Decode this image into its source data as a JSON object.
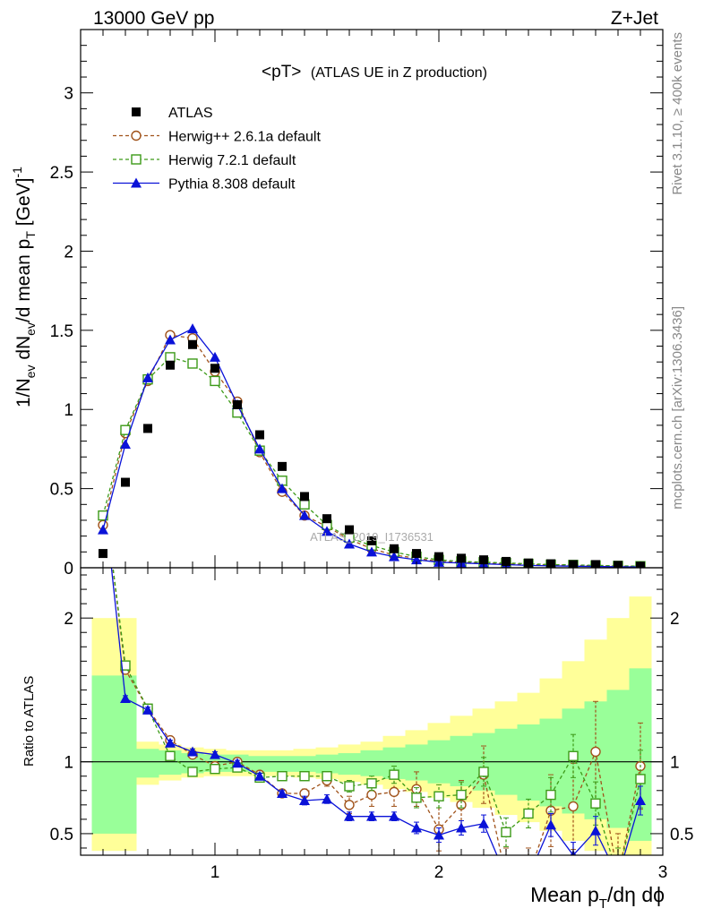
{
  "header": {
    "left": "13000 GeV pp",
    "right": "Z+Jet"
  },
  "side": {
    "rivet": "Rivet 3.1.10, ≥ 400k events",
    "mcplots": "mcplots.cern.ch [arXiv:1306.3436]"
  },
  "plot_title": {
    "main": "<pT>",
    "sub": "(ATLAS UE in Z production)"
  },
  "watermark": "ATLAS_2019_I1736531",
  "colors": {
    "atlas": "#000000",
    "herwigpp": "#a0521a",
    "herwig7": "#3c9a18",
    "pythia": "#0a12d8",
    "band_yellow": "#ffff99",
    "band_green": "#99ff99"
  },
  "chart_data": [
    {
      "type": "scatter",
      "panel": "main",
      "ylabel": "1/N_ev dN_ev/d mean p_T [GeV]^-1",
      "ylim": [
        0,
        3.4
      ],
      "yticks": [
        0,
        0.5,
        1,
        1.5,
        2,
        2.5,
        3
      ],
      "xlim": [
        0.4,
        3.0
      ],
      "x": [
        0.5,
        0.6,
        0.7,
        0.8,
        0.9,
        1.0,
        1.1,
        1.2,
        1.3,
        1.4,
        1.5,
        1.6,
        1.7,
        1.8,
        1.9,
        2.0,
        2.1,
        2.2,
        2.3,
        2.4,
        2.5,
        2.6,
        2.7,
        2.8,
        2.9
      ],
      "series": [
        {
          "name": "ATLAS",
          "key": "atlas",
          "marker": "square-filled",
          "values": [
            0.09,
            0.54,
            0.88,
            1.28,
            1.41,
            1.26,
            1.03,
            0.84,
            0.64,
            0.45,
            0.31,
            0.24,
            0.17,
            0.12,
            0.09,
            0.07,
            0.06,
            0.05,
            0.04,
            0.03,
            0.025,
            0.02,
            0.02,
            0.015,
            0.01
          ]
        },
        {
          "name": "Herwig++ 2.6.1a default",
          "key": "herwigpp",
          "marker": "circle-open",
          "dashed": true,
          "values": [
            0.27,
            0.85,
            1.18,
            1.47,
            1.45,
            1.24,
            1.05,
            0.73,
            0.48,
            0.33,
            0.26,
            0.18,
            0.12,
            0.08,
            0.06,
            0.04,
            0.035,
            0.03,
            0.025,
            0.02,
            0.018,
            0.015,
            0.012,
            0.01,
            0.008
          ]
        },
        {
          "name": "Herwig 7.2.1 default",
          "key": "herwig7",
          "marker": "square-open",
          "dashed": true,
          "values": [
            0.33,
            0.87,
            1.19,
            1.33,
            1.29,
            1.18,
            0.98,
            0.74,
            0.55,
            0.4,
            0.27,
            0.19,
            0.14,
            0.1,
            0.07,
            0.05,
            0.04,
            0.035,
            0.03,
            0.025,
            0.02,
            0.018,
            0.015,
            0.012,
            0.01
          ]
        },
        {
          "name": "Pythia 8.308 default",
          "key": "pythia",
          "marker": "triangle-filled",
          "values": [
            0.24,
            0.78,
            1.2,
            1.44,
            1.51,
            1.33,
            1.03,
            0.75,
            0.5,
            0.33,
            0.23,
            0.15,
            0.1,
            0.07,
            0.05,
            0.035,
            0.03,
            0.025,
            0.02,
            0.015,
            0.012,
            0.01,
            0.008,
            0.006,
            0.005
          ]
        }
      ]
    },
    {
      "type": "line",
      "panel": "ratio",
      "ylabel": "Ratio to ATLAS",
      "xlabel": "Mean p_T/dη dϕ",
      "ylim": [
        0.35,
        2.35
      ],
      "yticks": [
        0.5,
        1,
        2
      ],
      "xlim": [
        0.4,
        3.0
      ],
      "xticks": [
        1,
        2,
        3
      ],
      "reference": 1,
      "bin_edges": [
        0.45,
        0.55,
        0.65,
        0.75,
        0.85,
        0.95,
        1.05,
        1.15,
        1.25,
        1.35,
        1.45,
        1.55,
        1.65,
        1.75,
        1.85,
        1.95,
        2.05,
        2.15,
        2.25,
        2.35,
        2.45,
        2.55,
        2.65,
        2.75,
        2.85,
        2.95
      ],
      "band_green": [
        [
          0.5,
          1.6
        ],
        [
          0.5,
          1.6
        ],
        [
          0.89,
          1.09
        ],
        [
          0.91,
          1.08
        ],
        [
          0.92,
          1.06
        ],
        [
          0.93,
          1.05
        ],
        [
          0.93,
          1.05
        ],
        [
          0.93,
          1.04
        ],
        [
          0.93,
          1.04
        ],
        [
          0.93,
          1.04
        ],
        [
          0.92,
          1.05
        ],
        [
          0.91,
          1.06
        ],
        [
          0.9,
          1.08
        ],
        [
          0.88,
          1.1
        ],
        [
          0.87,
          1.12
        ],
        [
          0.85,
          1.15
        ],
        [
          0.83,
          1.18
        ],
        [
          0.8,
          1.2
        ],
        [
          0.77,
          1.23
        ],
        [
          0.73,
          1.26
        ],
        [
          0.69,
          1.3
        ],
        [
          0.64,
          1.37
        ],
        [
          0.6,
          1.42
        ],
        [
          0.54,
          1.5
        ],
        [
          0.45,
          1.65
        ]
      ],
      "band_yellow": [
        [
          0.38,
          2.0
        ],
        [
          0.38,
          2.0
        ],
        [
          0.84,
          1.14
        ],
        [
          0.87,
          1.12
        ],
        [
          0.89,
          1.1
        ],
        [
          0.9,
          1.09
        ],
        [
          0.9,
          1.08
        ],
        [
          0.9,
          1.08
        ],
        [
          0.9,
          1.08
        ],
        [
          0.89,
          1.09
        ],
        [
          0.88,
          1.1
        ],
        [
          0.86,
          1.12
        ],
        [
          0.84,
          1.14
        ],
        [
          0.81,
          1.18
        ],
        [
          0.79,
          1.22
        ],
        [
          0.75,
          1.27
        ],
        [
          0.72,
          1.32
        ],
        [
          0.68,
          1.37
        ],
        [
          0.63,
          1.42
        ],
        [
          0.58,
          1.48
        ],
        [
          0.52,
          1.58
        ],
        [
          0.45,
          1.7
        ],
        [
          0.38,
          1.85
        ],
        [
          0.3,
          2.0
        ],
        [
          0.2,
          2.15
        ]
      ],
      "series": [
        {
          "name": "Herwig++ 2.6.1a default",
          "key": "herwigpp",
          "marker": "circle-open",
          "dashed": true,
          "values": [
            2.9,
            1.64,
            1.37,
            1.15,
            1.05,
            0.97,
            1.0,
            0.91,
            0.78,
            0.78,
            0.87,
            0.7,
            0.77,
            0.79,
            0.81,
            0.53,
            0.7,
            0.91,
            0.2,
            0.2,
            0.66,
            0.69,
            1.07,
            0.2,
            0.97
          ],
          "errors": [
            0.2,
            0.03,
            0.02,
            0.02,
            0.02,
            0.02,
            0.02,
            0.02,
            0.02,
            0.03,
            0.04,
            0.06,
            0.08,
            0.1,
            0.12,
            0.15,
            0.17,
            0.2,
            0.2,
            0.2,
            0.25,
            0.3,
            0.35,
            0.3,
            0.3
          ]
        },
        {
          "name": "Herwig 7.2.1 default",
          "key": "herwig7",
          "marker": "square-open",
          "dashed": true,
          "values": [
            2.9,
            1.67,
            1.37,
            1.04,
            0.93,
            0.95,
            0.96,
            0.89,
            0.9,
            0.9,
            0.9,
            0.83,
            0.85,
            0.91,
            0.75,
            0.76,
            0.77,
            0.93,
            0.51,
            0.64,
            0.77,
            1.04,
            0.71,
            0.2,
            0.88
          ],
          "errors": [
            0.2,
            0.03,
            0.02,
            0.02,
            0.02,
            0.02,
            0.02,
            0.02,
            0.02,
            0.02,
            0.03,
            0.04,
            0.05,
            0.06,
            0.07,
            0.08,
            0.09,
            0.1,
            0.1,
            0.1,
            0.12,
            0.15,
            0.15,
            0.2,
            0.2
          ]
        },
        {
          "name": "Pythia 8.308 default",
          "key": "pythia",
          "marker": "triangle-filled",
          "values": [
            2.9,
            1.44,
            1.36,
            1.13,
            1.07,
            1.05,
            0.99,
            0.9,
            0.78,
            0.73,
            0.74,
            0.62,
            0.62,
            0.62,
            0.54,
            0.49,
            0.54,
            0.57,
            0.2,
            0.2,
            0.56,
            0.35,
            0.52,
            0.2,
            0.73
          ],
          "errors": [
            0.2,
            0.02,
            0.02,
            0.02,
            0.02,
            0.02,
            0.02,
            0.02,
            0.02,
            0.03,
            0.03,
            0.03,
            0.03,
            0.03,
            0.04,
            0.05,
            0.05,
            0.06,
            0.06,
            0.07,
            0.08,
            0.09,
            0.1,
            0.1,
            0.1
          ]
        }
      ]
    }
  ]
}
